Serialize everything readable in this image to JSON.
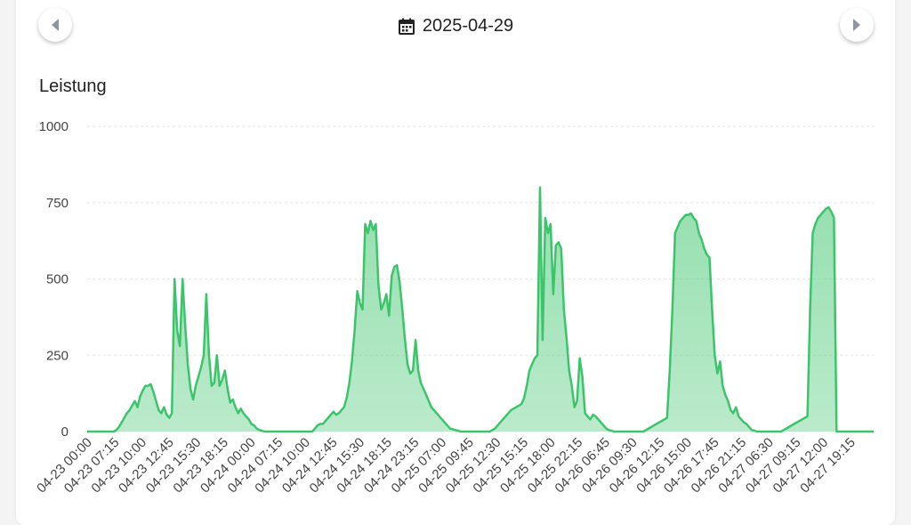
{
  "header": {
    "date": "2025-04-29",
    "calendar_icon": "calendar-icon",
    "prev_icon": "chevron-left-icon",
    "next_icon": "chevron-right-icon"
  },
  "chart_data": {
    "type": "area",
    "title": "Leistung",
    "color": "#3cc46b",
    "fill_color": "#3cc46b",
    "ylim": [
      0,
      1000
    ],
    "yticks": [
      "0",
      "250",
      "500",
      "750",
      "1000"
    ],
    "xticks": [
      "04-23 00:00",
      "04-23 07:15",
      "04-23 10:00",
      "04-23 12:45",
      "04-23 15:30",
      "04-23 18:15",
      "04-24 00:00",
      "04-24 07:15",
      "04-24 10:00",
      "04-24 12:45",
      "04-24 15:30",
      "04-24 18:15",
      "04-24 23:15",
      "04-25 07:00",
      "04-25 09:45",
      "04-25 12:30",
      "04-25 15:15",
      "04-25 18:00",
      "04-25 22:15",
      "04-26 06:45",
      "04-26 09:30",
      "04-26 12:15",
      "04-26 15:00",
      "04-26 17:45",
      "04-26 21:15",
      "04-27 06:30",
      "04-27 09:15",
      "04-27 12:00",
      "04-27 19:15"
    ],
    "grid": true,
    "series": [
      {
        "values": [
          0,
          0,
          0,
          0,
          0,
          0,
          0,
          0,
          0,
          0,
          0,
          5,
          15,
          30,
          45,
          60,
          70,
          85,
          100,
          80,
          115,
          135,
          150,
          150,
          155,
          130,
          100,
          70,
          60,
          80,
          55,
          45,
          60,
          500,
          330,
          280,
          500,
          350,
          220,
          140,
          105,
          150,
          180,
          210,
          250,
          450,
          250,
          150,
          160,
          250,
          150,
          170,
          200,
          140,
          95,
          105,
          80,
          60,
          75,
          60,
          50,
          40,
          25,
          20,
          10,
          5,
          3,
          0,
          0,
          0,
          0,
          0,
          0,
          0,
          0,
          0,
          0,
          0,
          0,
          0,
          0,
          0,
          0,
          0,
          0,
          0,
          10,
          20,
          25,
          25,
          35,
          45,
          55,
          65,
          55,
          60,
          70,
          80,
          110,
          160,
          230,
          330,
          460,
          420,
          400,
          680,
          650,
          690,
          660,
          680,
          480,
          400,
          420,
          450,
          380,
          510,
          540,
          545,
          490,
          400,
          300,
          220,
          190,
          200,
          300,
          200,
          160,
          140,
          120,
          100,
          80,
          70,
          60,
          50,
          40,
          30,
          20,
          10,
          8,
          5,
          3,
          0,
          0,
          0,
          0,
          0,
          0,
          0,
          0,
          0,
          0,
          0,
          0,
          5,
          10,
          20,
          30,
          40,
          50,
          60,
          70,
          75,
          80,
          85,
          90,
          110,
          150,
          200,
          220,
          240,
          250,
          800,
          300,
          700,
          650,
          680,
          450,
          610,
          620,
          600,
          400,
          310,
          200,
          150,
          80,
          100,
          240,
          180,
          60,
          50,
          40,
          55,
          50,
          40,
          30,
          20,
          10,
          5,
          3,
          0,
          0,
          0,
          0,
          0,
          0,
          0,
          0,
          0,
          0,
          0,
          0,
          5,
          10,
          15,
          20,
          25,
          30,
          35,
          40,
          45,
          200,
          400,
          650,
          670,
          690,
          700,
          710,
          710,
          715,
          700,
          690,
          650,
          630,
          600,
          580,
          570,
          400,
          250,
          190,
          230,
          150,
          120,
          100,
          70,
          60,
          80,
          50,
          40,
          30,
          25,
          15,
          5,
          3,
          0,
          0,
          0,
          0,
          0,
          0,
          0,
          0,
          0,
          0,
          5,
          10,
          15,
          20,
          25,
          30,
          35,
          40,
          45,
          50,
          400,
          650,
          680,
          700,
          710,
          720,
          730,
          735,
          720,
          700,
          0,
          0,
          0,
          0,
          0,
          0,
          0,
          0,
          0,
          0,
          0,
          0,
          0,
          0,
          0
        ]
      }
    ]
  }
}
